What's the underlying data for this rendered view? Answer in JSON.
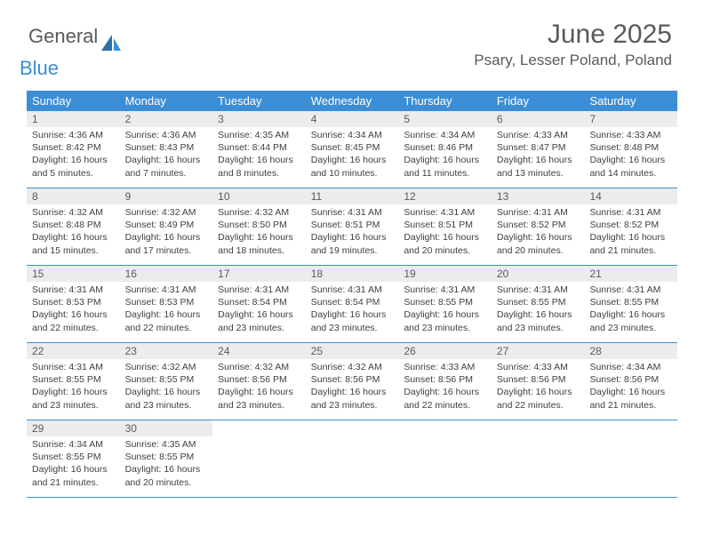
{
  "logo": {
    "general": "General",
    "blue": "Blue"
  },
  "header": {
    "month_title": "June 2025",
    "location": "Psary, Lesser Poland, Poland"
  },
  "colors": {
    "header_bg": "#3b8ed6",
    "header_text": "#ffffff",
    "daynum_bg": "#ececec",
    "text_gray": "#5a5a5a",
    "body_text": "#404040",
    "logo_blue": "#3b8ed6"
  },
  "calendar": {
    "day_labels": [
      "Sunday",
      "Monday",
      "Tuesday",
      "Wednesday",
      "Thursday",
      "Friday",
      "Saturday"
    ],
    "weeks": [
      [
        {
          "n": "1",
          "sr": "4:36 AM",
          "ss": "8:42 PM",
          "dl": "16 hours and 5 minutes."
        },
        {
          "n": "2",
          "sr": "4:36 AM",
          "ss": "8:43 PM",
          "dl": "16 hours and 7 minutes."
        },
        {
          "n": "3",
          "sr": "4:35 AM",
          "ss": "8:44 PM",
          "dl": "16 hours and 8 minutes."
        },
        {
          "n": "4",
          "sr": "4:34 AM",
          "ss": "8:45 PM",
          "dl": "16 hours and 10 minutes."
        },
        {
          "n": "5",
          "sr": "4:34 AM",
          "ss": "8:46 PM",
          "dl": "16 hours and 11 minutes."
        },
        {
          "n": "6",
          "sr": "4:33 AM",
          "ss": "8:47 PM",
          "dl": "16 hours and 13 minutes."
        },
        {
          "n": "7",
          "sr": "4:33 AM",
          "ss": "8:48 PM",
          "dl": "16 hours and 14 minutes."
        }
      ],
      [
        {
          "n": "8",
          "sr": "4:32 AM",
          "ss": "8:48 PM",
          "dl": "16 hours and 15 minutes."
        },
        {
          "n": "9",
          "sr": "4:32 AM",
          "ss": "8:49 PM",
          "dl": "16 hours and 17 minutes."
        },
        {
          "n": "10",
          "sr": "4:32 AM",
          "ss": "8:50 PM",
          "dl": "16 hours and 18 minutes."
        },
        {
          "n": "11",
          "sr": "4:31 AM",
          "ss": "8:51 PM",
          "dl": "16 hours and 19 minutes."
        },
        {
          "n": "12",
          "sr": "4:31 AM",
          "ss": "8:51 PM",
          "dl": "16 hours and 20 minutes."
        },
        {
          "n": "13",
          "sr": "4:31 AM",
          "ss": "8:52 PM",
          "dl": "16 hours and 20 minutes."
        },
        {
          "n": "14",
          "sr": "4:31 AM",
          "ss": "8:52 PM",
          "dl": "16 hours and 21 minutes."
        }
      ],
      [
        {
          "n": "15",
          "sr": "4:31 AM",
          "ss": "8:53 PM",
          "dl": "16 hours and 22 minutes."
        },
        {
          "n": "16",
          "sr": "4:31 AM",
          "ss": "8:53 PM",
          "dl": "16 hours and 22 minutes."
        },
        {
          "n": "17",
          "sr": "4:31 AM",
          "ss": "8:54 PM",
          "dl": "16 hours and 23 minutes."
        },
        {
          "n": "18",
          "sr": "4:31 AM",
          "ss": "8:54 PM",
          "dl": "16 hours and 23 minutes."
        },
        {
          "n": "19",
          "sr": "4:31 AM",
          "ss": "8:55 PM",
          "dl": "16 hours and 23 minutes."
        },
        {
          "n": "20",
          "sr": "4:31 AM",
          "ss": "8:55 PM",
          "dl": "16 hours and 23 minutes."
        },
        {
          "n": "21",
          "sr": "4:31 AM",
          "ss": "8:55 PM",
          "dl": "16 hours and 23 minutes."
        }
      ],
      [
        {
          "n": "22",
          "sr": "4:31 AM",
          "ss": "8:55 PM",
          "dl": "16 hours and 23 minutes."
        },
        {
          "n": "23",
          "sr": "4:32 AM",
          "ss": "8:55 PM",
          "dl": "16 hours and 23 minutes."
        },
        {
          "n": "24",
          "sr": "4:32 AM",
          "ss": "8:56 PM",
          "dl": "16 hours and 23 minutes."
        },
        {
          "n": "25",
          "sr": "4:32 AM",
          "ss": "8:56 PM",
          "dl": "16 hours and 23 minutes."
        },
        {
          "n": "26",
          "sr": "4:33 AM",
          "ss": "8:56 PM",
          "dl": "16 hours and 22 minutes."
        },
        {
          "n": "27",
          "sr": "4:33 AM",
          "ss": "8:56 PM",
          "dl": "16 hours and 22 minutes."
        },
        {
          "n": "28",
          "sr": "4:34 AM",
          "ss": "8:56 PM",
          "dl": "16 hours and 21 minutes."
        }
      ],
      [
        {
          "n": "29",
          "sr": "4:34 AM",
          "ss": "8:55 PM",
          "dl": "16 hours and 21 minutes."
        },
        {
          "n": "30",
          "sr": "4:35 AM",
          "ss": "8:55 PM",
          "dl": "16 hours and 20 minutes."
        },
        null,
        null,
        null,
        null,
        null
      ]
    ],
    "labels": {
      "sunrise": "Sunrise:",
      "sunset": "Sunset:",
      "daylight": "Daylight:"
    }
  }
}
